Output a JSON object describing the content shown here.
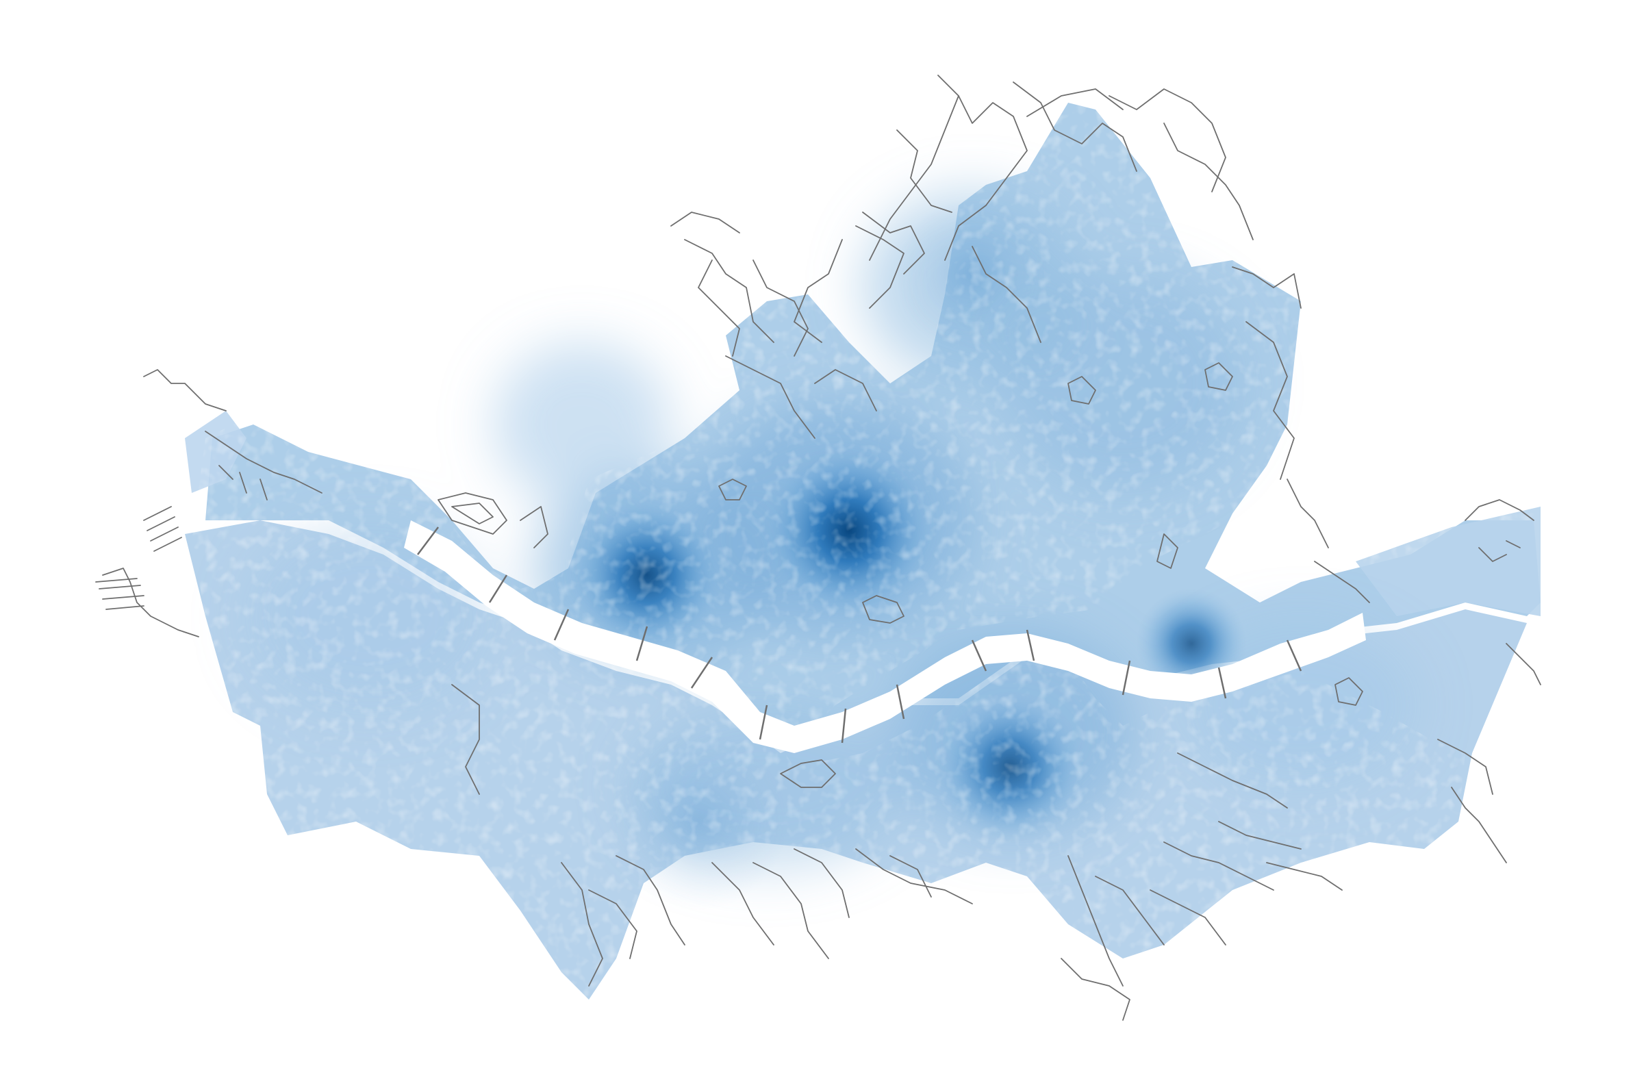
{
  "map": {
    "type": "density-heatmap-over-road-network",
    "colors": {
      "background": "#ffffff",
      "roads": "#6e6e6e",
      "river": "#ffffff",
      "density_low": "#c9dcef",
      "density_mid": "#7fb1dc",
      "density_high": "#0a4f95"
    },
    "hotspots": [
      {
        "name": "north-central-core",
        "intensity": 1.0
      },
      {
        "name": "west-core",
        "intensity": 0.9
      },
      {
        "name": "south-core",
        "intensity": 0.8
      },
      {
        "name": "east-riverside",
        "intensity": 0.75
      },
      {
        "name": "northeast-area",
        "intensity": 0.45
      },
      {
        "name": "southwest-area",
        "intensity": 0.4
      }
    ]
  }
}
